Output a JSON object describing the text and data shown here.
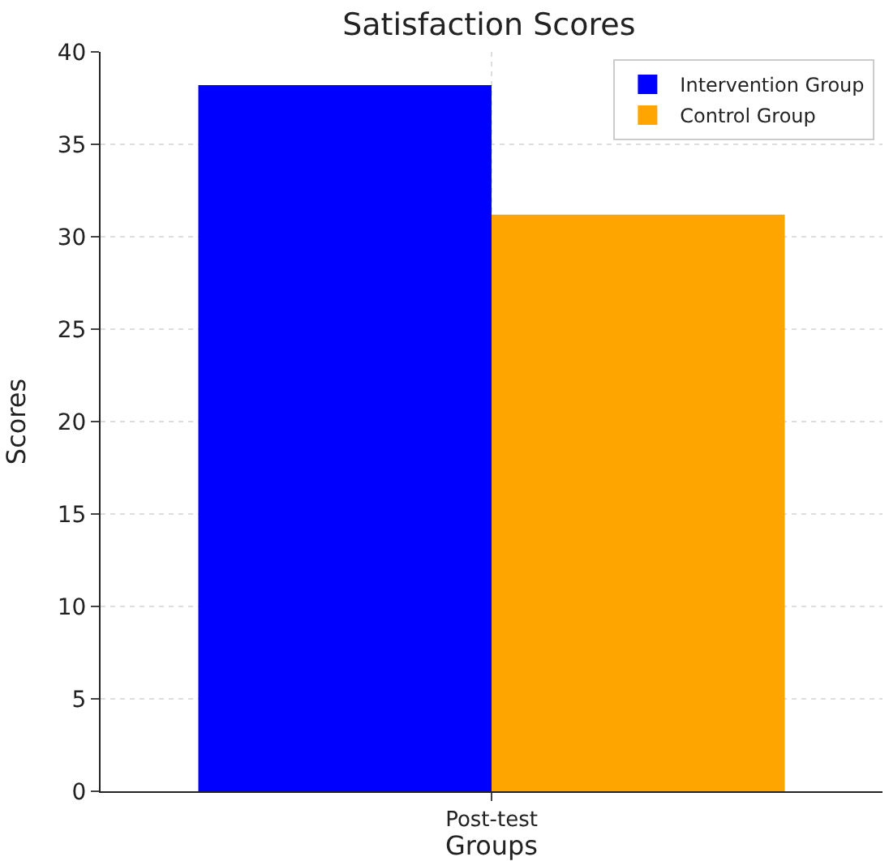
{
  "chart_data": {
    "type": "bar",
    "title": "Satisfaction Scores",
    "xlabel": "Groups",
    "ylabel": "Scores",
    "categories": [
      "Post-test"
    ],
    "series": [
      {
        "name": "Intervention Group",
        "color": "#0000ff",
        "values": [
          38.2
        ]
      },
      {
        "name": "Control Group",
        "color": "#ffa500",
        "values": [
          31.2
        ]
      }
    ],
    "ylim": [
      0,
      40
    ],
    "yticks": [
      0,
      5,
      10,
      15,
      20,
      25,
      30,
      35,
      40
    ],
    "grid": true,
    "legend": "top right"
  }
}
